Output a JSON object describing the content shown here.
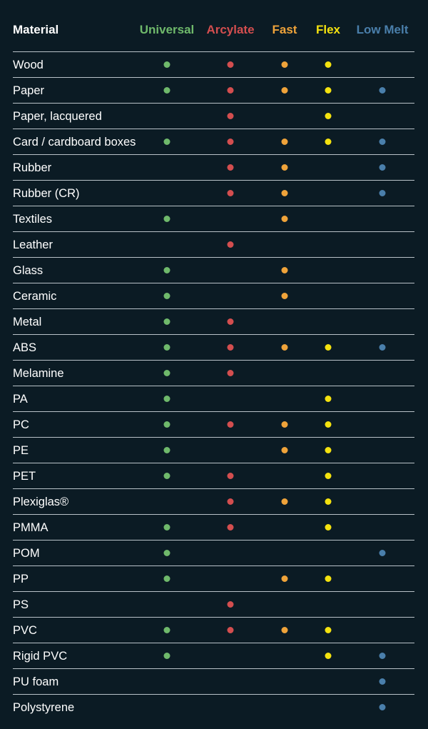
{
  "header": {
    "material_label": "Material",
    "columns": [
      {
        "label": "Universal",
        "color": "#6fb96b"
      },
      {
        "label": "Arcylate",
        "color": "#d34e4f"
      },
      {
        "label": "Fast",
        "color": "#efa33a"
      },
      {
        "label": "Flex",
        "color": "#f4e20f"
      },
      {
        "label": "Low Melt",
        "color": "#4a7fab"
      }
    ]
  },
  "rows": [
    {
      "material": "Wood",
      "marks": [
        true,
        true,
        true,
        true,
        false
      ]
    },
    {
      "material": "Paper",
      "marks": [
        true,
        true,
        true,
        true,
        true
      ]
    },
    {
      "material": "Paper, lacquered",
      "marks": [
        false,
        true,
        false,
        true,
        false
      ]
    },
    {
      "material": "Card / cardboard boxes",
      "marks": [
        true,
        true,
        true,
        true,
        true
      ]
    },
    {
      "material": "Rubber",
      "marks": [
        false,
        true,
        true,
        false,
        true
      ]
    },
    {
      "material": "Rubber (CR)",
      "marks": [
        false,
        true,
        true,
        false,
        true
      ]
    },
    {
      "material": "Textiles",
      "marks": [
        true,
        false,
        true,
        false,
        false
      ]
    },
    {
      "material": "Leather",
      "marks": [
        false,
        true,
        false,
        false,
        false
      ]
    },
    {
      "material": "Glass",
      "marks": [
        true,
        false,
        true,
        false,
        false
      ]
    },
    {
      "material": "Ceramic",
      "marks": [
        true,
        false,
        true,
        false,
        false
      ]
    },
    {
      "material": "Metal",
      "marks": [
        true,
        true,
        false,
        false,
        false
      ]
    },
    {
      "material": "ABS",
      "marks": [
        true,
        true,
        true,
        true,
        true
      ]
    },
    {
      "material": "Melamine",
      "marks": [
        true,
        true,
        false,
        false,
        false
      ]
    },
    {
      "material": "PA",
      "marks": [
        true,
        false,
        false,
        true,
        false
      ]
    },
    {
      "material": "PC",
      "marks": [
        true,
        true,
        true,
        true,
        false
      ]
    },
    {
      "material": "PE",
      "marks": [
        true,
        false,
        true,
        true,
        false
      ]
    },
    {
      "material": "PET",
      "marks": [
        true,
        true,
        false,
        true,
        false
      ]
    },
    {
      "material": "Plexiglas®",
      "marks": [
        false,
        true,
        true,
        true,
        false
      ]
    },
    {
      "material": "PMMA",
      "marks": [
        true,
        true,
        false,
        true,
        false
      ]
    },
    {
      "material": "POM",
      "marks": [
        true,
        false,
        false,
        false,
        true
      ]
    },
    {
      "material": "PP",
      "marks": [
        true,
        false,
        true,
        true,
        false
      ]
    },
    {
      "material": "PS",
      "marks": [
        false,
        true,
        false,
        false,
        false
      ]
    },
    {
      "material": "PVC",
      "marks": [
        true,
        true,
        true,
        true,
        false
      ]
    },
    {
      "material": "Rigid PVC",
      "marks": [
        true,
        false,
        false,
        true,
        true
      ]
    },
    {
      "material": "PU foam",
      "marks": [
        false,
        false,
        false,
        false,
        true
      ]
    },
    {
      "material": "Polystyrene",
      "marks": [
        false,
        false,
        false,
        false,
        true
      ]
    }
  ]
}
